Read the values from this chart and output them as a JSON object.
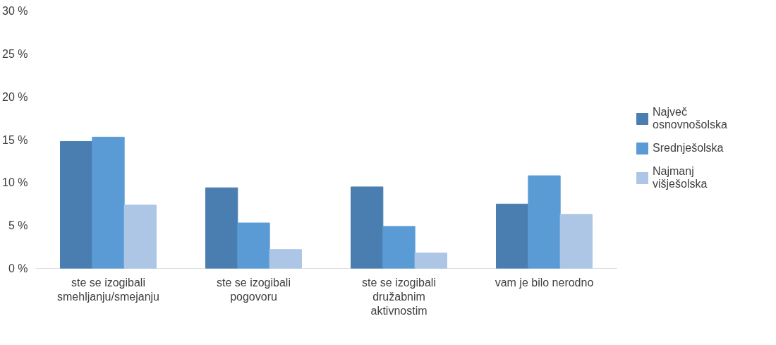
{
  "chart_data": {
    "type": "bar",
    "categories": [
      "ste se izogibali smehljanju/smejanju",
      "ste se izogibali pogovoru",
      "ste se izogibali družabnim aktivnostim",
      "vam je bilo nerodno"
    ],
    "series": [
      {
        "name": "Največ osnovnošolska",
        "color": "#4a7eb0",
        "values": [
          14.8,
          9.4,
          9.5,
          7.5
        ]
      },
      {
        "name": "Srednješolska",
        "color": "#5b9bd5",
        "values": [
          15.3,
          5.3,
          4.9,
          10.8
        ]
      },
      {
        "name": "Najmanj višješolska",
        "color": "#aec6e6",
        "values": [
          7.4,
          2.2,
          1.8,
          6.3
        ]
      }
    ],
    "ylim": [
      0,
      30
    ],
    "yticks": [
      {
        "value": 0,
        "label": "0 %"
      },
      {
        "value": 5,
        "label": "5 %"
      },
      {
        "value": 10,
        "label": "10 %"
      },
      {
        "value": 15,
        "label": "15 %"
      },
      {
        "value": 20,
        "label": "20 %"
      },
      {
        "value": 25,
        "label": "25 %"
      },
      {
        "value": 30,
        "label": "30 %"
      }
    ],
    "grid": false,
    "legend": "right"
  }
}
